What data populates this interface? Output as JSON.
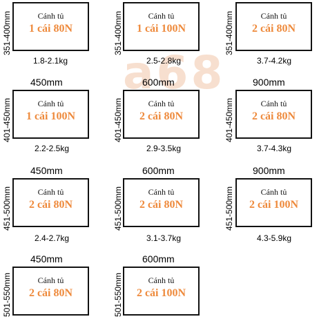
{
  "watermark": {
    "text": "a68",
    "color": "#f2c6a8"
  },
  "colors": {
    "spec_text": "#ee8a3c",
    "box_border": "#111111"
  },
  "cells": [
    {
      "row": 1,
      "col": 1,
      "width": "",
      "height": "351-400mm",
      "panel": "Cánh tủ",
      "spec": "1 cái 80N",
      "weight": "1.8-2.1kg"
    },
    {
      "row": 1,
      "col": 2,
      "width": "",
      "height": "351-400mm",
      "panel": "Cánh tủ",
      "spec": "1 cái 100N",
      "weight": "2.5-2.8kg"
    },
    {
      "row": 1,
      "col": 3,
      "width": "",
      "height": "351-400mm",
      "panel": "Cánh tủ",
      "spec": "2 cái 80N",
      "weight": "3.7-4.2kg"
    },
    {
      "row": 2,
      "col": 1,
      "width": "450mm",
      "height": "401-450mm",
      "panel": "Cánh tủ",
      "spec": "1 cái 100N",
      "weight": "2.2-2.5kg"
    },
    {
      "row": 2,
      "col": 2,
      "width": "600mm",
      "height": "401-450mm",
      "panel": "Cánh tủ",
      "spec": "2 cái 80N",
      "weight": "2.9-3.5kg"
    },
    {
      "row": 2,
      "col": 3,
      "width": "900mm",
      "height": "401-450mm",
      "panel": "Cánh tủ",
      "spec": "2 cái 80N",
      "weight": "3.7-4.3kg"
    },
    {
      "row": 3,
      "col": 1,
      "width": "450mm",
      "height": "451-500mm",
      "panel": "Cánh tủ",
      "spec": "2 cái 80N",
      "weight": "2.4-2.7kg"
    },
    {
      "row": 3,
      "col": 2,
      "width": "600mm",
      "height": "451-500mm",
      "panel": "Cánh tủ",
      "spec": "2 cái 80N",
      "weight": "3.1-3.7kg"
    },
    {
      "row": 3,
      "col": 3,
      "width": "900mm",
      "height": "451-500mm",
      "panel": "Cánh tủ",
      "spec": "2 cái 100N",
      "weight": "4.3-5.9kg"
    },
    {
      "row": 4,
      "col": 1,
      "width": "450mm",
      "height": "501-550mm",
      "panel": "Cánh tủ",
      "spec": "2 cái 80N",
      "weight": ""
    },
    {
      "row": 4,
      "col": 2,
      "width": "600mm",
      "height": "501-550mm",
      "panel": "Cánh tủ",
      "spec": "2 cái 100N",
      "weight": ""
    }
  ]
}
